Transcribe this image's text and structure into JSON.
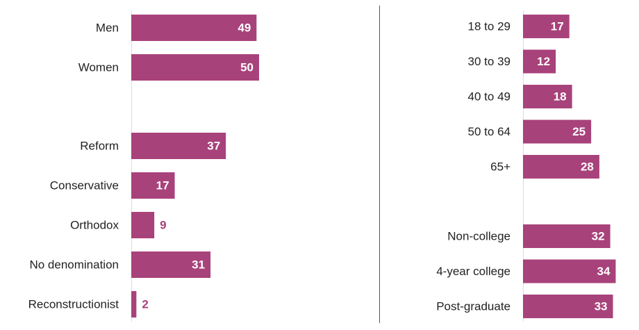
{
  "colors": {
    "bar": "#a8427a",
    "value_inside": "#ffffff",
    "value_outside": "#a8427a",
    "axis": "#dddddd",
    "divider": "#555555",
    "text": "#222222"
  },
  "chart_data": [
    {
      "type": "bar",
      "orientation": "horizontal",
      "groups": [
        {
          "categories": [
            "Men",
            "Women"
          ],
          "values": [
            49,
            50
          ]
        },
        {
          "categories": [
            "Reform",
            "Conservative",
            "Orthodox",
            "No denomination",
            "Reconstructionist"
          ],
          "values": [
            37,
            17,
            9,
            31,
            2
          ]
        }
      ],
      "data_labels": true,
      "xlim": [
        0,
        50
      ]
    },
    {
      "type": "bar",
      "orientation": "horizontal",
      "groups": [
        {
          "categories": [
            "18 to 29",
            "30 to 39",
            "40 to 49",
            "50 to 64",
            "65+"
          ],
          "values": [
            17,
            12,
            18,
            25,
            28
          ]
        },
        {
          "categories": [
            "Non-college",
            "4-year college",
            "Post-graduate"
          ],
          "values": [
            32,
            34,
            33
          ]
        }
      ],
      "data_labels": true,
      "xlim": [
        0,
        34
      ]
    }
  ]
}
